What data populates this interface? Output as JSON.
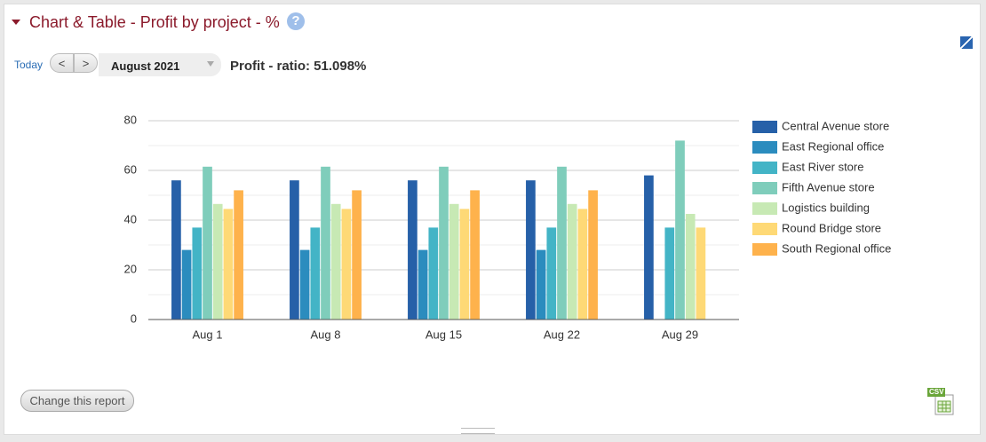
{
  "header": {
    "title": "Chart & Table - Profit by project - %",
    "help": "?"
  },
  "controls": {
    "today": "Today",
    "prev": "<",
    "next": ">",
    "period": "August 2021"
  },
  "summary": "Profit - ratio: 51.098%",
  "chart_data": {
    "type": "bar",
    "categories": [
      "Aug 1",
      "Aug 8",
      "Aug 15",
      "Aug 22",
      "Aug 29"
    ],
    "series": [
      {
        "name": "Central Avenue store",
        "color": "#2660a8",
        "values": [
          56,
          56,
          56,
          56,
          58
        ]
      },
      {
        "name": "East Regional office",
        "color": "#2b8cbe",
        "values": [
          28,
          28,
          28,
          28,
          null
        ]
      },
      {
        "name": "East River store",
        "color": "#43b4c6",
        "values": [
          37,
          37,
          37,
          37,
          37
        ]
      },
      {
        "name": "Fifth Avenue store",
        "color": "#7fcdbb",
        "values": [
          61.5,
          61.5,
          61.5,
          61.5,
          72
        ]
      },
      {
        "name": "Logistics building",
        "color": "#c7e9b4",
        "values": [
          46.5,
          46.5,
          46.5,
          46.5,
          42.5
        ]
      },
      {
        "name": "Round Bridge store",
        "color": "#fed976",
        "values": [
          44.5,
          44.5,
          44.5,
          44.5,
          37
        ]
      },
      {
        "name": "South Regional office",
        "color": "#feb24c",
        "values": [
          52,
          52,
          52,
          52,
          null
        ]
      }
    ],
    "ylim": [
      0,
      80
    ],
    "yticks": [
      0,
      20,
      40,
      60,
      80
    ],
    "minor_yticks": [
      10,
      30,
      50,
      70
    ],
    "grid": true,
    "legend": "right"
  },
  "footer": {
    "button": "Change this report",
    "export": "CSV"
  }
}
